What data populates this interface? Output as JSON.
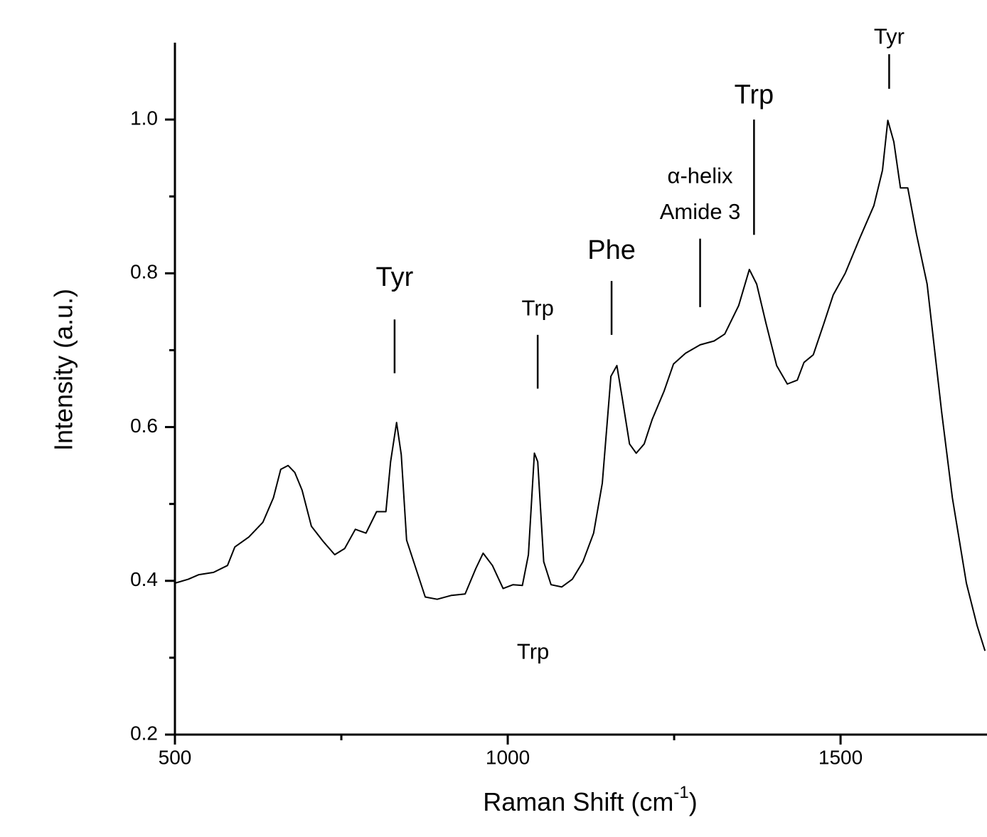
{
  "chart_data": {
    "type": "line",
    "ylabel": "Intensity (a.u.)",
    "xlabel": [
      "Raman Shift (cm",
      "-1",
      ")"
    ],
    "xlim": [
      500,
      1720
    ],
    "ylim": [
      0.2,
      1.1
    ],
    "xticks": [
      500,
      1000,
      1500
    ],
    "xticks_minor": [
      750,
      1250
    ],
    "yticks": [
      0.2,
      0.4,
      0.6,
      0.8,
      {
        "value": 1.0,
        "label": "1.0"
      }
    ],
    "yticks_minor": [
      0.3,
      0.5,
      0.7,
      0.9
    ],
    "grid": false,
    "series": [
      {
        "color": "#000000",
        "x": [
          500,
          520,
          536,
          558,
          579,
          590,
          611,
          632,
          648,
          659,
          670,
          680,
          691,
          705,
          723,
          740,
          755,
          771,
          787,
          803,
          817,
          824,
          833,
          840,
          848,
          862,
          876,
          894,
          915,
          936,
          952,
          963,
          977,
          993,
          1008,
          1022,
          1031,
          1040,
          1045,
          1054,
          1065,
          1081,
          1097,
          1113,
          1129,
          1142,
          1155,
          1164,
          1172,
          1183,
          1193,
          1205,
          1217,
          1235,
          1249,
          1267,
          1289,
          1310,
          1326,
          1347,
          1363,
          1374,
          1388,
          1404,
          1420,
          1435,
          1445,
          1459,
          1475,
          1489,
          1507,
          1529,
          1550,
          1563,
          1571,
          1580,
          1590,
          1601,
          1614,
          1630,
          1652,
          1668,
          1689,
          1705,
          1717
        ],
        "values": [
          0.397,
          0.402,
          0.408,
          0.411,
          0.42,
          0.444,
          0.457,
          0.476,
          0.508,
          0.545,
          0.55,
          0.541,
          0.518,
          0.471,
          0.451,
          0.434,
          0.442,
          0.467,
          0.462,
          0.49,
          0.49,
          0.555,
          0.606,
          0.564,
          0.453,
          0.416,
          0.379,
          0.376,
          0.381,
          0.383,
          0.416,
          0.436,
          0.42,
          0.39,
          0.395,
          0.394,
          0.434,
          0.566,
          0.555,
          0.425,
          0.395,
          0.392,
          0.402,
          0.425,
          0.462,
          0.527,
          0.666,
          0.68,
          0.638,
          0.578,
          0.566,
          0.578,
          0.61,
          0.647,
          0.682,
          0.696,
          0.707,
          0.712,
          0.721,
          0.758,
          0.805,
          0.786,
          0.735,
          0.68,
          0.656,
          0.661,
          0.684,
          0.694,
          0.735,
          0.772,
          0.8,
          0.846,
          0.888,
          0.934,
          0.999,
          0.971,
          0.911,
          0.911,
          0.851,
          0.786,
          0.619,
          0.508,
          0.397,
          0.342,
          0.309
        ]
      }
    ],
    "annotations": [
      {
        "text": "Tyr",
        "x": 830,
        "y": 0.793,
        "line": [
          0.67,
          0.74
        ]
      },
      {
        "text": "Trp",
        "x": 1045,
        "y": 0.753,
        "line": [
          0.65,
          0.72
        ]
      },
      {
        "text": "Phe",
        "x": 1156,
        "y": 0.828,
        "line": [
          0.72,
          0.79
        ]
      },
      {
        "text": "α-helix",
        "x": 1289,
        "y": 0.925
      },
      {
        "text": "Amide 3",
        "x": 1289,
        "y": 0.878,
        "line": [
          0.756,
          0.845
        ]
      },
      {
        "text": "Trp",
        "x": 1370,
        "y": 1.03,
        "line": [
          0.85,
          1.0
        ]
      },
      {
        "text": "Tyr",
        "x": 1573,
        "y": 1.106,
        "line": [
          1.04,
          1.085
        ]
      },
      {
        "text": "Trp",
        "x": 1038,
        "y": 0.306
      }
    ]
  }
}
